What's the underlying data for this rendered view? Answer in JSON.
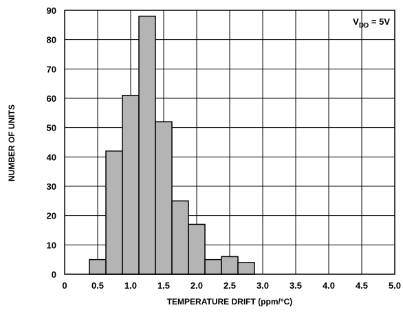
{
  "chart_data": {
    "type": "bar",
    "histogram": true,
    "bin_width": 0.25,
    "bins": [
      {
        "start": 0.375,
        "end": 0.625,
        "count": 5
      },
      {
        "start": 0.625,
        "end": 0.875,
        "count": 42
      },
      {
        "start": 0.875,
        "end": 1.125,
        "count": 61
      },
      {
        "start": 1.125,
        "end": 1.375,
        "count": 88
      },
      {
        "start": 1.375,
        "end": 1.625,
        "count": 52
      },
      {
        "start": 1.625,
        "end": 1.875,
        "count": 25
      },
      {
        "start": 1.875,
        "end": 2.125,
        "count": 17
      },
      {
        "start": 2.125,
        "end": 2.375,
        "count": 5
      },
      {
        "start": 2.375,
        "end": 2.625,
        "count": 6
      },
      {
        "start": 2.625,
        "end": 2.875,
        "count": 4
      }
    ],
    "xlabel": "TEMPERATURE DRIFT (ppm/°C)",
    "ylabel": "NUMBER OF UNITS",
    "xlim": [
      0,
      5.0
    ],
    "ylim": [
      0,
      90
    ],
    "x_ticks": [
      "0",
      "0.5",
      "1.0",
      "1.5",
      "2.0",
      "2.5",
      "3.0",
      "3.5",
      "4.0",
      "4.5",
      "5.0"
    ],
    "y_ticks": [
      "0",
      "10",
      "20",
      "30",
      "40",
      "50",
      "60",
      "70",
      "80",
      "90"
    ],
    "grid": true,
    "annotation": {
      "base": "V",
      "subscript": "DD",
      "rest": " = 5V",
      "placement": "top-right"
    },
    "colors": {
      "bar_fill": "#b4b4b4",
      "bar_stroke": "#000000",
      "grid": "#000000"
    }
  }
}
